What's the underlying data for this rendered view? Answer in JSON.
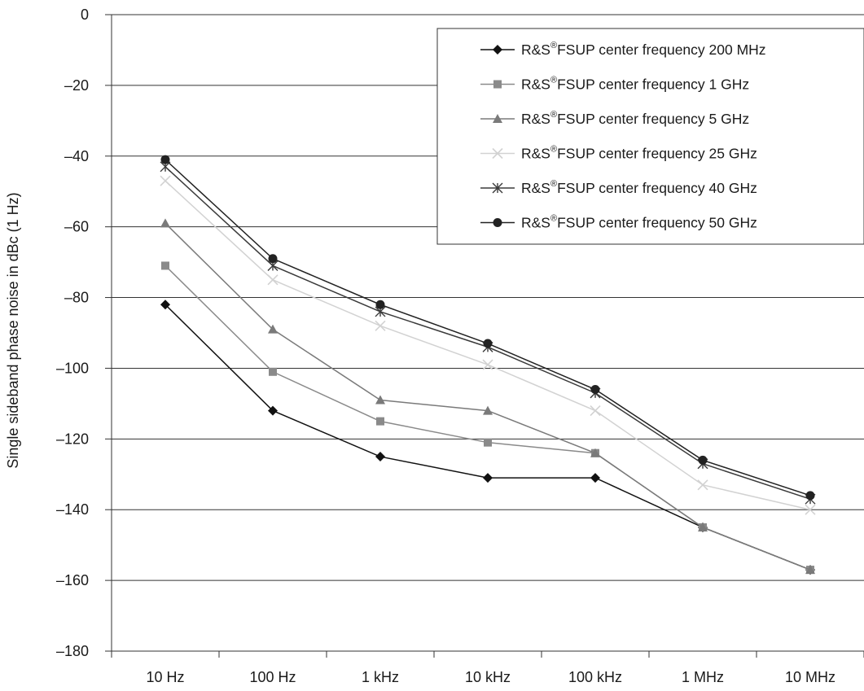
{
  "chart_data": {
    "type": "line",
    "ylabel": "Single sideband phase noise in dBc (1 Hz)",
    "xlabel": "",
    "title": "",
    "categories": [
      "10 Hz",
      "100 Hz",
      "1 kHz",
      "10 kHz",
      "100 kHz",
      "1 MHz",
      "10 MHz"
    ],
    "ylim": [
      -180,
      0
    ],
    "yticks": [
      0,
      -20,
      -40,
      -60,
      -80,
      -100,
      -120,
      -140,
      -160,
      -180
    ],
    "ytick_labels": [
      "0",
      "–20",
      "–40",
      "–60",
      "–80",
      "–100",
      "–120",
      "–140",
      "–160",
      "–180"
    ],
    "grid": "horizontal",
    "legend_position": "top-right",
    "legend_prefix": "R&S",
    "legend_registered_mark": "®",
    "series": [
      {
        "name": "R&S®FSUP center frequency 200 MHz",
        "legend_text": "FSUP center frequency 200 MHz",
        "marker": "diamond",
        "color": "#111111",
        "values": [
          -82,
          -112,
          -125,
          -131,
          -131,
          -145,
          -157
        ]
      },
      {
        "name": "R&S®FSUP center frequency 1 GHz",
        "legend_text": "FSUP center frequency 1 GHz",
        "marker": "square",
        "color": "#8a8a8a",
        "values": [
          -71,
          -101,
          -115,
          -121,
          -124,
          -145,
          -157
        ]
      },
      {
        "name": "R&S®FSUP center frequency 5 GHz",
        "legend_text": "FSUP center frequency 5 GHz",
        "marker": "triangle",
        "color": "#7a7a7a",
        "values": [
          -59,
          -89,
          -109,
          -112,
          -124,
          -145,
          -157
        ]
      },
      {
        "name": "R&S®FSUP center frequency 25 GHz",
        "legend_text": "FSUP center frequency 25 GHz",
        "marker": "x",
        "color": "#d2d2d2",
        "values": [
          -47,
          -75,
          -88,
          -99,
          -112,
          -133,
          -140
        ]
      },
      {
        "name": "R&S®FSUP center frequency 40 GHz",
        "legend_text": "FSUP center frequency 40 GHz",
        "marker": "star",
        "color": "#3a3a3a",
        "values": [
          -43,
          -71,
          -84,
          -94,
          -107,
          -127,
          -137
        ]
      },
      {
        "name": "R&S®FSUP center frequency 50 GHz",
        "legend_text": "FSUP center frequency 50 GHz",
        "marker": "circle",
        "color": "#222222",
        "values": [
          -41,
          -69,
          -82,
          -93,
          -106,
          -126,
          -136
        ]
      }
    ]
  }
}
